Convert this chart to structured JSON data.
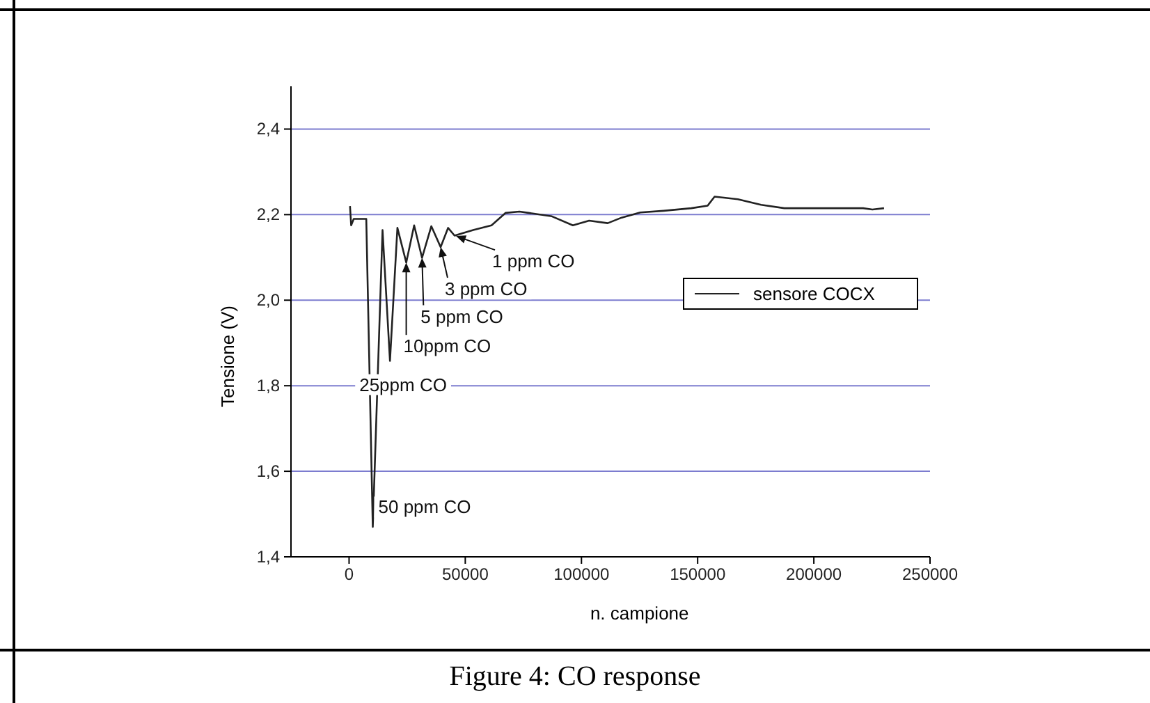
{
  "chart_data": {
    "type": "line",
    "xlabel": "n. campione",
    "ylabel": "Tensione (V)",
    "xlim": [
      -25000,
      250000
    ],
    "ylim": [
      1.4,
      2.5
    ],
    "xticks": [
      0,
      50000,
      100000,
      150000,
      200000,
      250000
    ],
    "yticks": [
      {
        "value": 1.4,
        "label": "1,4"
      },
      {
        "value": 1.6,
        "label": "1,6"
      },
      {
        "value": 1.8,
        "label": "1,8"
      },
      {
        "value": 2.0,
        "label": "2,0"
      },
      {
        "value": 2.2,
        "label": "2,2"
      },
      {
        "value": 2.4,
        "label": "2,4"
      }
    ],
    "grid": "y",
    "legend": "right",
    "line_style": "solid",
    "series": [
      {
        "name": "sensore COCX",
        "color": "#222222",
        "x": [
          400,
          900,
          2000,
          7400,
          10200,
          14400,
          17600,
          20800,
          24600,
          28000,
          31400,
          35400,
          39400,
          42600,
          45400,
          53400,
          61300,
          67300,
          73300,
          77300,
          87300,
          96300,
          103300,
          111300,
          117300,
          125300,
          135300,
          147300,
          154300,
          157300,
          167300,
          177300,
          187300,
          207300,
          221200,
          225200,
          230200
        ],
        "values": [
          2.22,
          2.175,
          2.19,
          2.19,
          1.47,
          2.164,
          1.858,
          2.169,
          2.088,
          2.175,
          2.099,
          2.173,
          2.124,
          2.169,
          2.151,
          2.164,
          2.175,
          2.204,
          2.207,
          2.204,
          2.196,
          2.175,
          2.186,
          2.18,
          2.193,
          2.205,
          2.209,
          2.215,
          2.221,
          2.242,
          2.236,
          2.223,
          2.215,
          2.215,
          2.215,
          2.212,
          2.215
        ]
      }
    ],
    "annotations": [
      {
        "text": "1 ppm CO",
        "x": 46000,
        "y": 2.15
      },
      {
        "text": "3 ppm CO",
        "x": 39400,
        "y": 2.124
      },
      {
        "text": "5 ppm CO",
        "x": 31400,
        "y": 2.099
      },
      {
        "text": "10ppm CO",
        "x": 24600,
        "y": 2.088
      },
      {
        "text": "25ppm CO",
        "x": 17600,
        "y": 1.858
      },
      {
        "text": "50 ppm CO",
        "x": 10200,
        "y": 1.471
      },
      "Figure 4: CO response"
    ]
  }
}
